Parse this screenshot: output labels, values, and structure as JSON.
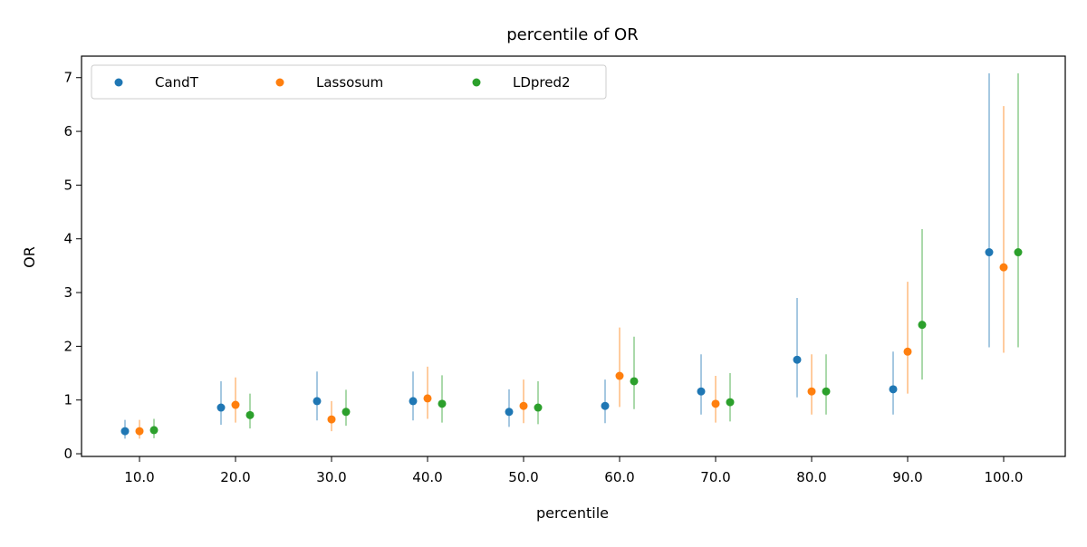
{
  "chart_data": {
    "type": "scatter",
    "title": "percentile of OR",
    "xlabel": "percentile",
    "ylabel": "OR",
    "categories": [
      "10.0",
      "20.0",
      "30.0",
      "40.0",
      "50.0",
      "60.0",
      "70.0",
      "80.0",
      "90.0",
      "100.0"
    ],
    "ylim": [
      -0.05,
      7.4
    ],
    "yticks": [
      0,
      1,
      2,
      3,
      4,
      5,
      6,
      7
    ],
    "grid": false,
    "legend": {
      "placement": "top-left",
      "columns": 3
    },
    "series": [
      {
        "name": "CandT",
        "color": "#1f77b4",
        "values": [
          0.42,
          0.86,
          0.98,
          0.98,
          0.78,
          0.89,
          1.16,
          1.75,
          1.2,
          3.75
        ],
        "lower": [
          0.28,
          0.54,
          0.62,
          0.62,
          0.5,
          0.57,
          0.73,
          1.05,
          0.73,
          1.98
        ],
        "upper": [
          0.63,
          1.35,
          1.53,
          1.53,
          1.2,
          1.38,
          1.85,
          2.9,
          1.9,
          7.08
        ]
      },
      {
        "name": "Lassosum",
        "color": "#ff7f0e",
        "values": [
          0.42,
          0.91,
          0.64,
          1.03,
          0.89,
          1.45,
          0.93,
          1.16,
          1.9,
          3.47
        ],
        "lower": [
          0.28,
          0.58,
          0.42,
          0.65,
          0.57,
          0.87,
          0.58,
          0.73,
          1.12,
          1.88
        ],
        "upper": [
          0.63,
          1.42,
          0.98,
          1.62,
          1.38,
          2.35,
          1.45,
          1.85,
          3.2,
          6.47
        ]
      },
      {
        "name": "LDpred2",
        "color": "#2ca02c",
        "values": [
          0.44,
          0.72,
          0.78,
          0.93,
          0.86,
          1.35,
          0.96,
          1.16,
          2.4,
          3.75
        ],
        "lower": [
          0.29,
          0.47,
          0.52,
          0.58,
          0.55,
          0.83,
          0.6,
          0.73,
          1.38,
          1.98
        ],
        "upper": [
          0.65,
          1.12,
          1.19,
          1.46,
          1.35,
          2.18,
          1.5,
          1.85,
          4.18,
          7.08
        ]
      }
    ]
  }
}
